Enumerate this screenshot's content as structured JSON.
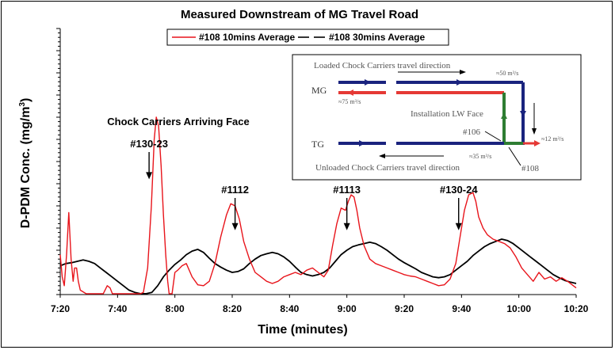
{
  "chart_data": {
    "type": "line",
    "title": "Measured Downstream of MG Travel Road",
    "xlabel": "Time (minutes)",
    "ylabel": "D-PDM Conc. (mg/m3)",
    "ylabel_main": "D-PDM Conc. (mg/m",
    "ylabel_sup": "3",
    "ylabel_close": ")",
    "x_ticks": [
      "7:20",
      "7:40",
      "8:00",
      "8:20",
      "8:40",
      "9:00",
      "9:20",
      "9:40",
      "10:00",
      "10:20"
    ],
    "x_tick_minutes": [
      440,
      460,
      480,
      500,
      520,
      540,
      560,
      580,
      600,
      620
    ],
    "xlim": [
      440,
      620
    ],
    "ylim": [
      0,
      6
    ],
    "legend_position": "top-center",
    "series": [
      {
        "name": "#108 10mins Average",
        "color": "#e8141b",
        "dash": "solid",
        "points": [
          [
            440.0,
            0.9
          ],
          [
            440.7,
            0.4
          ],
          [
            441.4,
            0.2
          ],
          [
            442.2,
            0.9
          ],
          [
            443.0,
            1.85
          ],
          [
            443.8,
            0.8
          ],
          [
            444.5,
            0.3
          ],
          [
            445.0,
            0.6
          ],
          [
            445.7,
            0.6
          ],
          [
            446.3,
            0.3
          ],
          [
            447.0,
            0.1
          ],
          [
            449.0,
            0.02
          ],
          [
            451.0,
            0.02
          ],
          [
            455.0,
            0.02
          ],
          [
            456.4,
            0.2
          ],
          [
            457.4,
            0.15
          ],
          [
            458.2,
            0.02
          ],
          [
            468.0,
            0.02
          ],
          [
            469.0,
            0.05
          ],
          [
            470.5,
            0.6
          ],
          [
            471.8,
            2.0
          ],
          [
            472.8,
            3.5
          ],
          [
            473.5,
            4.0
          ],
          [
            474.3,
            3.8
          ],
          [
            475.2,
            2.9
          ],
          [
            476.0,
            1.8
          ],
          [
            476.8,
            0.9
          ],
          [
            477.5,
            0.3
          ],
          [
            478.0,
            0.02
          ],
          [
            479.0,
            0.02
          ],
          [
            480.0,
            0.5
          ],
          [
            481.0,
            0.55
          ],
          [
            482.5,
            0.65
          ],
          [
            484.0,
            0.7
          ],
          [
            486.0,
            0.4
          ],
          [
            488.0,
            0.22
          ],
          [
            490.0,
            0.2
          ],
          [
            492.0,
            0.3
          ],
          [
            494.0,
            0.7
          ],
          [
            496.0,
            1.3
          ],
          [
            498.0,
            1.8
          ],
          [
            499.5,
            2.05
          ],
          [
            501.0,
            2.0
          ],
          [
            502.5,
            1.7
          ],
          [
            504.0,
            1.2
          ],
          [
            506.0,
            0.8
          ],
          [
            508.0,
            0.5
          ],
          [
            510.0,
            0.4
          ],
          [
            512.0,
            0.3
          ],
          [
            514.0,
            0.25
          ],
          [
            516.0,
            0.3
          ],
          [
            518.0,
            0.4
          ],
          [
            520.0,
            0.45
          ],
          [
            522.0,
            0.5
          ],
          [
            524.0,
            0.45
          ],
          [
            526.0,
            0.55
          ],
          [
            528.0,
            0.6
          ],
          [
            530.0,
            0.5
          ],
          [
            532.0,
            0.4
          ],
          [
            533.5,
            0.55
          ],
          [
            535.0,
            1.1
          ],
          [
            536.5,
            1.6
          ],
          [
            538.0,
            1.95
          ],
          [
            539.5,
            1.9
          ],
          [
            540.5,
            2.1
          ],
          [
            541.5,
            2.25
          ],
          [
            542.5,
            2.2
          ],
          [
            543.5,
            1.9
          ],
          [
            544.5,
            1.5
          ],
          [
            546.0,
            1.1
          ],
          [
            548.0,
            0.8
          ],
          [
            550.0,
            0.7
          ],
          [
            552.0,
            0.65
          ],
          [
            554.0,
            0.6
          ],
          [
            556.0,
            0.55
          ],
          [
            558.0,
            0.5
          ],
          [
            560.0,
            0.45
          ],
          [
            562.0,
            0.42
          ],
          [
            564.0,
            0.4
          ],
          [
            566.0,
            0.35
          ],
          [
            568.0,
            0.3
          ],
          [
            570.0,
            0.25
          ],
          [
            572.0,
            0.2
          ],
          [
            574.0,
            0.22
          ],
          [
            576.0,
            0.35
          ],
          [
            578.0,
            0.7
          ],
          [
            579.5,
            1.3
          ],
          [
            581.0,
            1.9
          ],
          [
            582.5,
            2.25
          ],
          [
            584.0,
            2.3
          ],
          [
            585.0,
            2.1
          ],
          [
            586.0,
            1.75
          ],
          [
            587.5,
            1.5
          ],
          [
            589.0,
            1.35
          ],
          [
            591.0,
            1.25
          ],
          [
            593.0,
            1.2
          ],
          [
            595.0,
            1.15
          ],
          [
            597.0,
            1.05
          ],
          [
            599.0,
            0.85
          ],
          [
            601.0,
            0.6
          ],
          [
            603.0,
            0.45
          ],
          [
            605.0,
            0.3
          ],
          [
            607.0,
            0.5
          ],
          [
            609.0,
            0.35
          ],
          [
            611.0,
            0.4
          ],
          [
            613.0,
            0.3
          ],
          [
            615.0,
            0.38
          ],
          [
            617.0,
            0.3
          ],
          [
            619.0,
            0.2
          ],
          [
            620.0,
            0.15
          ]
        ]
      },
      {
        "name": "#108 30mins Average",
        "color": "#000000",
        "dash": "solid",
        "points": [
          [
            440.0,
            0.65
          ],
          [
            442.0,
            0.7
          ],
          [
            444.0,
            0.72
          ],
          [
            446.0,
            0.75
          ],
          [
            448.0,
            0.78
          ],
          [
            450.0,
            0.75
          ],
          [
            452.0,
            0.7
          ],
          [
            454.0,
            0.6
          ],
          [
            456.0,
            0.5
          ],
          [
            458.0,
            0.4
          ],
          [
            460.0,
            0.3
          ],
          [
            462.0,
            0.2
          ],
          [
            464.0,
            0.1
          ],
          [
            466.0,
            0.05
          ],
          [
            468.0,
            0.02
          ],
          [
            470.0,
            0.02
          ],
          [
            472.0,
            0.05
          ],
          [
            474.0,
            0.2
          ],
          [
            476.0,
            0.4
          ],
          [
            478.0,
            0.55
          ],
          [
            480.0,
            0.68
          ],
          [
            482.0,
            0.78
          ],
          [
            484.0,
            0.9
          ],
          [
            486.0,
            0.98
          ],
          [
            488.0,
            1.02
          ],
          [
            490.0,
            0.95
          ],
          [
            492.0,
            0.82
          ],
          [
            494.0,
            0.7
          ],
          [
            496.0,
            0.62
          ],
          [
            498.0,
            0.55
          ],
          [
            500.0,
            0.5
          ],
          [
            502.0,
            0.52
          ],
          [
            504.0,
            0.58
          ],
          [
            506.0,
            0.7
          ],
          [
            508.0,
            0.8
          ],
          [
            510.0,
            0.88
          ],
          [
            512.0,
            0.92
          ],
          [
            514.0,
            0.95
          ],
          [
            516.0,
            0.92
          ],
          [
            518.0,
            0.85
          ],
          [
            520.0,
            0.75
          ],
          [
            522.0,
            0.62
          ],
          [
            524.0,
            0.5
          ],
          [
            526.0,
            0.45
          ],
          [
            528.0,
            0.42
          ],
          [
            530.0,
            0.45
          ],
          [
            532.0,
            0.5
          ],
          [
            534.0,
            0.6
          ],
          [
            536.0,
            0.75
          ],
          [
            538.0,
            0.9
          ],
          [
            540.0,
            1.0
          ],
          [
            542.0,
            1.08
          ],
          [
            544.0,
            1.12
          ],
          [
            546.0,
            1.15
          ],
          [
            548.0,
            1.18
          ],
          [
            550.0,
            1.15
          ],
          [
            552.0,
            1.08
          ],
          [
            554.0,
            1.0
          ],
          [
            556.0,
            0.9
          ],
          [
            558.0,
            0.8
          ],
          [
            560.0,
            0.72
          ],
          [
            562.0,
            0.65
          ],
          [
            564.0,
            0.58
          ],
          [
            566.0,
            0.5
          ],
          [
            568.0,
            0.45
          ],
          [
            570.0,
            0.4
          ],
          [
            572.0,
            0.38
          ],
          [
            574.0,
            0.4
          ],
          [
            576.0,
            0.45
          ],
          [
            578.0,
            0.55
          ],
          [
            580.0,
            0.65
          ],
          [
            582.0,
            0.75
          ],
          [
            584.0,
            0.88
          ],
          [
            586.0,
            0.98
          ],
          [
            588.0,
            1.08
          ],
          [
            590.0,
            1.15
          ],
          [
            592.0,
            1.2
          ],
          [
            594.0,
            1.25
          ],
          [
            596.0,
            1.22
          ],
          [
            598.0,
            1.15
          ],
          [
            600.0,
            1.05
          ],
          [
            602.0,
            0.95
          ],
          [
            604.0,
            0.85
          ],
          [
            606.0,
            0.75
          ],
          [
            608.0,
            0.65
          ],
          [
            610.0,
            0.55
          ],
          [
            612.0,
            0.45
          ],
          [
            614.0,
            0.38
          ],
          [
            616.0,
            0.32
          ],
          [
            618.0,
            0.28
          ],
          [
            620.0,
            0.25
          ]
        ]
      }
    ],
    "annotations": [
      {
        "text": "Chock Carriers Arriving Face",
        "kind": "heading"
      },
      {
        "text": "#130-23",
        "x": 471,
        "arrow_to_y": 2.6
      },
      {
        "text": "#1112",
        "x": 501,
        "arrow_to_y": 1.45
      },
      {
        "text": "#1113",
        "x": 540,
        "arrow_to_y": 1.45
      },
      {
        "text": "#130-24",
        "x": 579,
        "arrow_to_y": 1.45
      }
    ]
  },
  "inset": {
    "texts": {
      "loaded": "Loaded Chock Carriers travel direction",
      "mg": "MG",
      "tg": "TG",
      "install": "Installation LW Face",
      "unloaded": "Unloaded Chock Carriers travel direction",
      "s106": "#106",
      "s108": "#108",
      "v1": "≈50 m³/s",
      "v2": "≈75 m³/s",
      "v3": "≈35 m³/s",
      "v4": "≈12 m³/s"
    },
    "colors": {
      "blue": "#1a237e",
      "red": "#e53935",
      "green": "#2e7d32",
      "frame": "#000000"
    }
  }
}
